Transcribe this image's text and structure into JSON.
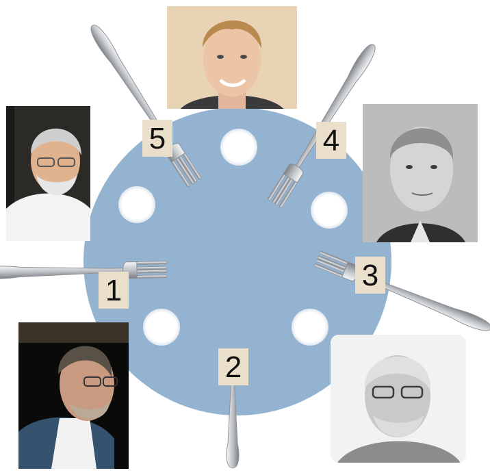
{
  "colors": {
    "table": "#93b3d1",
    "plate": "#ffffff",
    "label_bg": "#eadfca",
    "label_text": "#111111",
    "fork_metal": "#c9ccd0"
  },
  "philosophers": [
    {
      "name": "philosopher-top",
      "style": "color"
    },
    {
      "name": "philosopher-upper-left",
      "style": "color"
    },
    {
      "name": "philosopher-upper-right",
      "style": "grayscale"
    },
    {
      "name": "philosopher-lower-left",
      "style": "color"
    },
    {
      "name": "philosopher-lower-right",
      "style": "grayscale"
    }
  ],
  "forks": [
    {
      "id": 1,
      "label": "1"
    },
    {
      "id": 2,
      "label": "2"
    },
    {
      "id": 3,
      "label": "3"
    },
    {
      "id": 4,
      "label": "4"
    },
    {
      "id": 5,
      "label": "5"
    }
  ],
  "plates": 5
}
